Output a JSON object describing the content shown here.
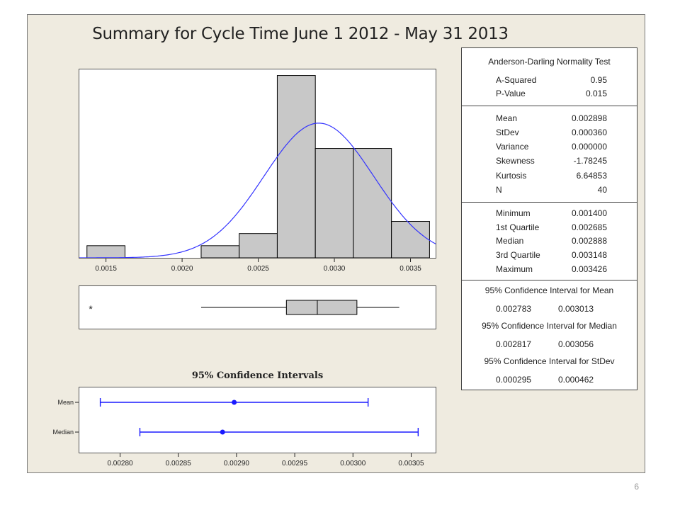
{
  "page_number": "6",
  "chart_title": "Summary for Cycle Time June 1 2012 - May 31 2013",
  "chart_data": [
    {
      "type": "bar",
      "subtype": "histogram-with-normal-fit",
      "title": "Summary for Cycle Time June 1 2012 - May 31 2013",
      "bin_width": 0.00025,
      "bins": [
        {
          "start": 0.001375,
          "end": 0.001625,
          "count": 1
        },
        {
          "start": 0.001625,
          "end": 0.001875,
          "count": 0
        },
        {
          "start": 0.001875,
          "end": 0.002125,
          "count": 0
        },
        {
          "start": 0.002125,
          "end": 0.002375,
          "count": 1
        },
        {
          "start": 0.002375,
          "end": 0.002625,
          "count": 2
        },
        {
          "start": 0.002625,
          "end": 0.002875,
          "count": 15
        },
        {
          "start": 0.002875,
          "end": 0.003125,
          "count": 9
        },
        {
          "start": 0.003125,
          "end": 0.003375,
          "count": 9
        },
        {
          "start": 0.003375,
          "end": 0.003625,
          "count": 3
        }
      ],
      "xticks": [
        "0.0015",
        "0.0020",
        "0.0025",
        "0.0030",
        "0.0035"
      ],
      "xlim": [
        0.001325,
        0.003665
      ],
      "ylim": [
        0,
        15.5
      ],
      "normal_fit": {
        "mean": 0.002898,
        "stdev": 0.00036,
        "n": 40
      },
      "colors": {
        "bar_fill": "#c8c8c8",
        "bar_edge": "#000000",
        "curve": "#3333ff"
      }
    },
    {
      "type": "boxplot",
      "min_whisker": 0.002125,
      "q1": 0.002685,
      "median": 0.002888,
      "q3": 0.003148,
      "max_whisker": 0.003426,
      "outliers": [
        0.0014
      ],
      "outlier_marker": "*",
      "xlim": [
        0.001325,
        0.003665
      ]
    },
    {
      "type": "errorbar",
      "title": "95% Confidence Intervals",
      "rows": [
        {
          "label": "Mean",
          "low": 0.002783,
          "point": 0.002898,
          "high": 0.003013
        },
        {
          "label": "Median",
          "low": 0.002817,
          "point": 0.002888,
          "high": 0.003056
        }
      ],
      "xticks": [
        "0.00280",
        "0.00285",
        "0.00290",
        "0.00295",
        "0.00300",
        "0.00305"
      ],
      "xlim": [
        0.002765,
        0.003071
      ],
      "color": "#1a1aff"
    }
  ],
  "stats": {
    "ad_title": "Anderson-Darling Normality Test",
    "ad_rows": [
      {
        "label": "A-Squared",
        "value": "0.95"
      },
      {
        "label": "P-Value",
        "value": "0.015"
      }
    ],
    "desc_rows": [
      {
        "label": "Mean",
        "value": "0.002898"
      },
      {
        "label": "StDev",
        "value": "0.000360"
      },
      {
        "label": "Variance",
        "value": "0.000000"
      },
      {
        "label": "Skewness",
        "value": "-1.78245"
      },
      {
        "label": "Kurtosis",
        "value": "6.64853"
      },
      {
        "label": "N",
        "value": "40"
      }
    ],
    "quart_rows": [
      {
        "label": "Minimum",
        "value": "0.001400"
      },
      {
        "label": "1st Quartile",
        "value": "0.002685"
      },
      {
        "label": "Median",
        "value": "0.002888"
      },
      {
        "label": "3rd Quartile",
        "value": "0.003148"
      },
      {
        "label": "Maximum",
        "value": "0.003426"
      }
    ],
    "ci_rows": [
      {
        "title": "95% Confidence Interval for Mean",
        "low": "0.002783",
        "high": "0.003013"
      },
      {
        "title": "95% Confidence Interval for Median",
        "low": "0.002817",
        "high": "0.003056"
      },
      {
        "title": "95% Confidence Interval for StDev",
        "low": "0.000295",
        "high": "0.000462"
      }
    ]
  }
}
